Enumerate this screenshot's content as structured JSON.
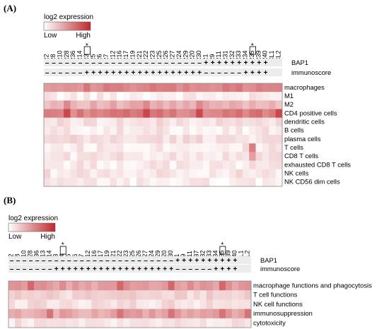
{
  "panels": [
    {
      "label": "(A)",
      "legend": {
        "title": "log2 expression",
        "low": "Low",
        "high": "High"
      },
      "chart_data": {
        "type": "heatmap",
        "columns": [
          "R2",
          "R8",
          "R10",
          "R28",
          "R36",
          "R14",
          "R3",
          "R5",
          "R6",
          "R7",
          "R12",
          "R16",
          "R17",
          "R19",
          "R21",
          "R22",
          "R23",
          "R25",
          "R26",
          "R27",
          "R24",
          "R29",
          "R20",
          "R30",
          "R1",
          "R9",
          "R11",
          "R31",
          "R32",
          "R33",
          "R34",
          "R35",
          "R39",
          "R40",
          "CL1",
          "CL2"
        ],
        "marked_columns": [
          "R3",
          "R35"
        ],
        "bap1": [
          "-",
          "-",
          "-",
          "-",
          "-",
          "-",
          "-",
          "-",
          "-",
          "-",
          "-",
          "-",
          "-",
          "-",
          "-",
          "-",
          "-",
          "-",
          "-",
          "-",
          "-",
          "-",
          "-",
          "-",
          "+",
          "+",
          "+",
          "+",
          "+",
          "+",
          "+",
          "+",
          "+",
          "+",
          "",
          ""
        ],
        "immunoscore": [
          "-",
          "-",
          "-",
          "-",
          "-",
          "-",
          "+",
          "+",
          "+",
          "+",
          "+",
          "+",
          "+",
          "+",
          "+",
          "+",
          "+",
          "+",
          "+",
          "+",
          "+",
          "+",
          "+",
          "+",
          "-",
          "-",
          "-",
          "-",
          "-",
          "-",
          "+",
          "+",
          "+",
          "+",
          "",
          ""
        ],
        "annotation_rows": [
          "BAP1",
          "immunoscore"
        ],
        "rows": [
          "macrophages",
          "M1",
          "M2",
          "CD4 positive cells",
          "dendritic cells",
          "B cells",
          "plasma cells",
          "T cells",
          "CD8 T cells",
          "exhausted CD8 T cells",
          "NK cells",
          "NK CD56 dim cells"
        ],
        "row_base": [
          0.55,
          0.08,
          0.35,
          0.6,
          0.14,
          0.1,
          0.15,
          0.1,
          0.12,
          0.1,
          0.12,
          0.08
        ],
        "highlights": [
          {
            "row": "CD4 positive cells",
            "columns": [
              "R28",
              "R22",
              "R30",
              "CL2"
            ],
            "level": 0.85
          },
          {
            "row": "M2",
            "columns": [
              "R28",
              "R22",
              "R30"
            ],
            "level": 0.55
          },
          {
            "row": "T cells",
            "columns": [
              "R35"
            ],
            "level": 0.6
          },
          {
            "row": "CD8 T cells",
            "columns": [
              "R35"
            ],
            "level": 0.45
          }
        ],
        "colors": {
          "low": "#ffffff",
          "high": "#c0272d"
        }
      }
    },
    {
      "label": "(B)",
      "legend": {
        "title": "log2 expression",
        "low": "Low",
        "high": "High"
      },
      "chart_data": {
        "type": "heatmap",
        "columns": [
          "R2",
          "R8",
          "R10",
          "R28",
          "R36",
          "R13",
          "R14",
          "R3",
          "R4",
          "R5",
          "R6",
          "R7",
          "R12",
          "R16",
          "R17",
          "R19",
          "R21",
          "R22",
          "R23",
          "R25",
          "R26",
          "R27",
          "R24",
          "R29",
          "R20",
          "R30",
          "R1",
          "R9",
          "R11",
          "R37",
          "R32",
          "R33",
          "R34",
          "R35",
          "R39",
          "R40",
          "CL1",
          "CL2"
        ],
        "marked_columns": [
          "R4",
          "R35"
        ],
        "bap1": [
          "-",
          "-",
          "-",
          "-",
          "-",
          "-",
          "-",
          "-",
          "-",
          "-",
          "-",
          "-",
          "-",
          "-",
          "-",
          "-",
          "-",
          "-",
          "-",
          "-",
          "-",
          "-",
          "-",
          "-",
          "-",
          "-",
          "+",
          "+",
          "+",
          "+",
          "+",
          "+",
          "+",
          "+",
          "+",
          "+",
          "",
          ""
        ],
        "immunoscore": [
          "-",
          "-",
          "-",
          "-",
          "-",
          "-",
          "-",
          "+",
          "+",
          "+",
          "+",
          "+",
          "+",
          "+",
          "+",
          "+",
          "+",
          "+",
          "+",
          "+",
          "+",
          "+",
          "+",
          "+",
          "+",
          "+",
          "-",
          "-",
          "-",
          "-",
          "-",
          "-",
          "+",
          "+",
          "+",
          "+",
          "",
          ""
        ],
        "annotation_rows": [
          "BAP1",
          "immunoscore"
        ],
        "rows": [
          "macrophage functions and phagocytosis",
          "T cell functions",
          "NK cell functions",
          "immunosuppression",
          "cytotoxicity"
        ],
        "row_base": [
          0.45,
          0.2,
          0.15,
          0.4,
          0.12
        ],
        "highlights": [
          {
            "row": "macrophage functions and phagocytosis",
            "columns": [
              "R28",
              "R22",
              "R30",
              "R35"
            ],
            "level": 0.7
          },
          {
            "row": "immunosuppression",
            "columns": [
              "R14",
              "R22",
              "R30",
              "R35",
              "CL2"
            ],
            "level": 0.65
          }
        ],
        "colors": {
          "low": "#ffffff",
          "high": "#c0272d"
        }
      }
    }
  ]
}
